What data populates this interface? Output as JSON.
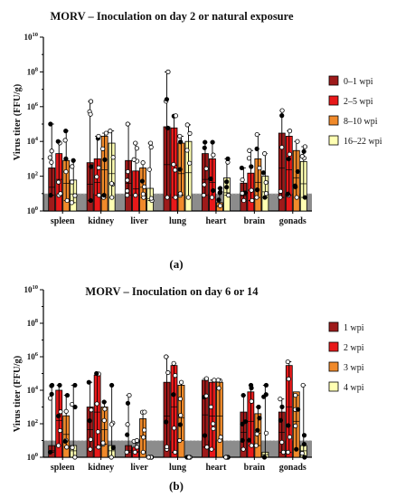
{
  "chart_data": [
    {
      "type": "bar",
      "panel_label": "(a)",
      "title": "MORV – Inoculation on day 2 or natural exposure",
      "xlabel": "",
      "ylabel": "Virus titer (FFU/g)",
      "yscale": "log",
      "ylim": [
        1,
        10000000000
      ],
      "y_ticks": [
        {
          "value": 1,
          "base": "10",
          "exp": "0"
        },
        {
          "value": 100,
          "base": "10",
          "exp": "2"
        },
        {
          "value": 10000,
          "base": "10",
          "exp": "4"
        },
        {
          "value": 1000000,
          "base": "10",
          "exp": "6"
        },
        {
          "value": 100000000,
          "base": "10",
          "exp": "8"
        },
        {
          "value": 10000000000,
          "base": "10",
          "exp": "10"
        }
      ],
      "detection_limit": 10,
      "categories": [
        "spleen",
        "kidney",
        "liver",
        "lung",
        "heart",
        "brain",
        "gonads"
      ],
      "series": [
        {
          "name": "0–1 wpi",
          "color": "#9e1a1a",
          "values": [
            300,
            600,
            800,
            70000,
            2000,
            40,
            30000
          ],
          "errors": [
            [
              8,
              100000
            ],
            [
              4,
              2000000
            ],
            [
              8,
              100000
            ],
            [
              6,
              100000000
            ],
            [
              8,
              9000
            ],
            [
              4,
              300
            ],
            [
              6,
              600000
            ]
          ]
        },
        {
          "name": "2–5 wpi",
          "color": "#e8191a",
          "values": [
            2000,
            1000,
            200,
            60000,
            1000,
            150,
            20000
          ],
          "errors": [
            [
              8,
              10000
            ],
            [
              8,
              20000
            ],
            [
              8,
              8000
            ],
            [
              6,
              300000
            ],
            [
              6,
              9000
            ],
            [
              4,
              3000
            ],
            [
              8,
              40000
            ]
          ]
        },
        {
          "name": "8–10 wpi",
          "color": "#f08a2b",
          "values": [
            800,
            20000,
            300,
            8000,
            3,
            1000,
            3000
          ],
          "errors": [
            [
              4,
              40000
            ],
            [
              6,
              30000
            ],
            [
              6,
              600
            ],
            [
              8,
              20000
            ],
            [
              2,
              20
            ],
            [
              6,
              25000
            ],
            [
              6,
              10000
            ]
          ]
        },
        {
          "name": "16–22 wpi",
          "color": "#ffffb3",
          "values": [
            60,
            8000,
            20,
            10000,
            80,
            100,
            700
          ],
          "errors": [
            [
              3,
              800
            ],
            [
              6,
              40000
            ],
            [
              4,
              8000
            ],
            [
              6,
              90000
            ],
            [
              8,
              1000
            ],
            [
              6,
              2000
            ],
            [
              6,
              5000
            ]
          ]
        }
      ]
    },
    {
      "type": "bar",
      "panel_label": "(b)",
      "title": "MORV – Inoculation on day 6 or 14",
      "xlabel": "",
      "ylabel": "Virus titer (FFU/g)",
      "yscale": "log",
      "ylim": [
        1,
        10000000000
      ],
      "y_ticks": [
        {
          "value": 1,
          "base": "10",
          "exp": "0"
        },
        {
          "value": 100,
          "base": "10",
          "exp": "2"
        },
        {
          "value": 10000,
          "base": "10",
          "exp": "4"
        },
        {
          "value": 1000000,
          "base": "10",
          "exp": "6"
        },
        {
          "value": 100000000,
          "base": "10",
          "exp": "8"
        },
        {
          "value": 10000000000,
          "base": "10",
          "exp": "10"
        }
      ],
      "detection_limit": 10,
      "categories": [
        "spleen",
        "kidney",
        "liver",
        "lung",
        "heart",
        "brain",
        "gonads"
      ],
      "series": [
        {
          "name": "1 wpi",
          "color": "#9e1a1a",
          "values": [
            5,
            1000,
            5,
            30000,
            40000,
            500,
            500
          ],
          "errors": [
            [
              2,
              20000
            ],
            [
              3,
              30000
            ],
            [
              2,
              5000
            ],
            [
              3,
              1000000
            ],
            [
              4,
              50000
            ],
            [
              3,
              5000
            ],
            [
              2,
              3000
            ]
          ]
        },
        {
          "name": "2 wpi",
          "color": "#e8191a",
          "values": [
            10000,
            80000,
            4,
            300000,
            30000,
            8000,
            300000
          ],
          "errors": [
            [
              5,
              20000
            ],
            [
              4,
              100000
            ],
            [
              2,
              10
            ],
            [
              2,
              400000
            ],
            [
              3,
              40000
            ],
            [
              5,
              20000
            ],
            [
              2,
              500000
            ]
          ]
        },
        {
          "name": "3 wpi",
          "color": "#f08a2b",
          "values": [
            300,
            1000,
            200,
            20000,
            30000,
            400,
            8000
          ],
          "errors": [
            [
              4,
              5000
            ],
            [
              6,
              2000
            ],
            [
              2,
              500
            ],
            [
              10,
              30000
            ],
            [
              10,
              40000
            ],
            [
              5,
              1000
            ],
            [
              3,
              5000
            ]
          ]
        },
        {
          "name": "4 wpi",
          "color": "#ffffb3",
          "values": [
            5,
            5,
            1,
            1,
            1,
            2,
            5
          ],
          "errors": [
            [
              1,
              20000
            ],
            [
              1,
              20000
            ],
            [
              1,
              1
            ],
            [
              1,
              1
            ],
            [
              1,
              1
            ],
            [
              1,
              20000
            ],
            [
              1,
              20000
            ]
          ]
        }
      ]
    }
  ]
}
